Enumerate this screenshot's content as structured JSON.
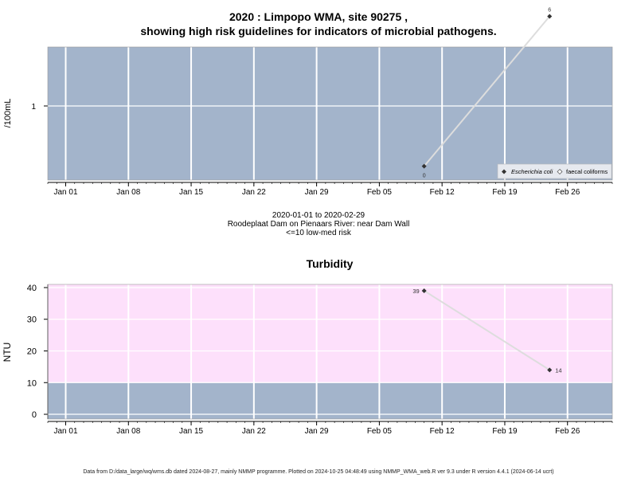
{
  "figure": {
    "title_line1": "2020 : Limpopo WMA, site 90275 ,",
    "title_line2": "showing high risk guidelines for indicators of microbial pathogens.",
    "date_range": "2020-01-01 to 2020-02-29",
    "site_description": "Roodeplaat Dam on Pienaars River: near Dam Wall",
    "risk_note": "<=10 low-med risk",
    "footer": "Data from D:/data_large/wq/wms.db dated 2024-08-27, mainly NMMP programme. Plotted on 2024-10-25 04:48:49 using NMMP_WMA_web.R ver 9.3 under R version 4.4.1 (2024-06-14 ucrt)"
  },
  "colors": {
    "panel_blue": "#a3b4cb",
    "turbidity_pink": "#fde0fb",
    "grid": "#ffffff",
    "line": "#dddddd",
    "point": "#333333"
  },
  "chart_data": [
    {
      "type": "line",
      "title": "",
      "xlabel": "",
      "ylabel": "/100mL",
      "y_scale": "log",
      "y_ticks": [
        1
      ],
      "x_ticks": [
        "Jan 01",
        "Jan 08",
        "Jan 15",
        "Jan 22",
        "Jan 29",
        "Feb 05",
        "Feb 12",
        "Feb 19",
        "Feb 26"
      ],
      "xlim": [
        "2019-12-30",
        "2020-03-02"
      ],
      "grid": true,
      "legend_position": "bottom-right",
      "series": [
        {
          "name": "Escherichia coli",
          "marker": "filled-diamond",
          "points": [
            {
              "x": "2020-02-10",
              "y": 0,
              "label": "0"
            },
            {
              "x": "2020-02-24",
              "y": 6,
              "label": "6"
            }
          ]
        },
        {
          "name": "faecal coliforms",
          "marker": "open-diamond",
          "points": []
        }
      ]
    },
    {
      "type": "line",
      "title": "Turbidity",
      "xlabel": "",
      "ylabel": "NTU",
      "ylim": [
        -1.5,
        41
      ],
      "y_ticks": [
        0,
        10,
        20,
        30,
        40
      ],
      "x_ticks": [
        "Jan 01",
        "Jan 08",
        "Jan 15",
        "Jan 22",
        "Jan 29",
        "Feb 05",
        "Feb 12",
        "Feb 19",
        "Feb 26"
      ],
      "xlim": [
        "2019-12-30",
        "2020-03-02"
      ],
      "grid": true,
      "background_bands": [
        {
          "from": -1.5,
          "to": 10,
          "color": "#a3b4cb"
        },
        {
          "from": 10,
          "to": 41,
          "color": "#fde0fb"
        }
      ],
      "series": [
        {
          "name": "",
          "points": [
            {
              "x": "2020-02-10",
              "y": 39,
              "label": "39"
            },
            {
              "x": "2020-02-24",
              "y": 14,
              "label": "14"
            }
          ]
        }
      ]
    }
  ]
}
